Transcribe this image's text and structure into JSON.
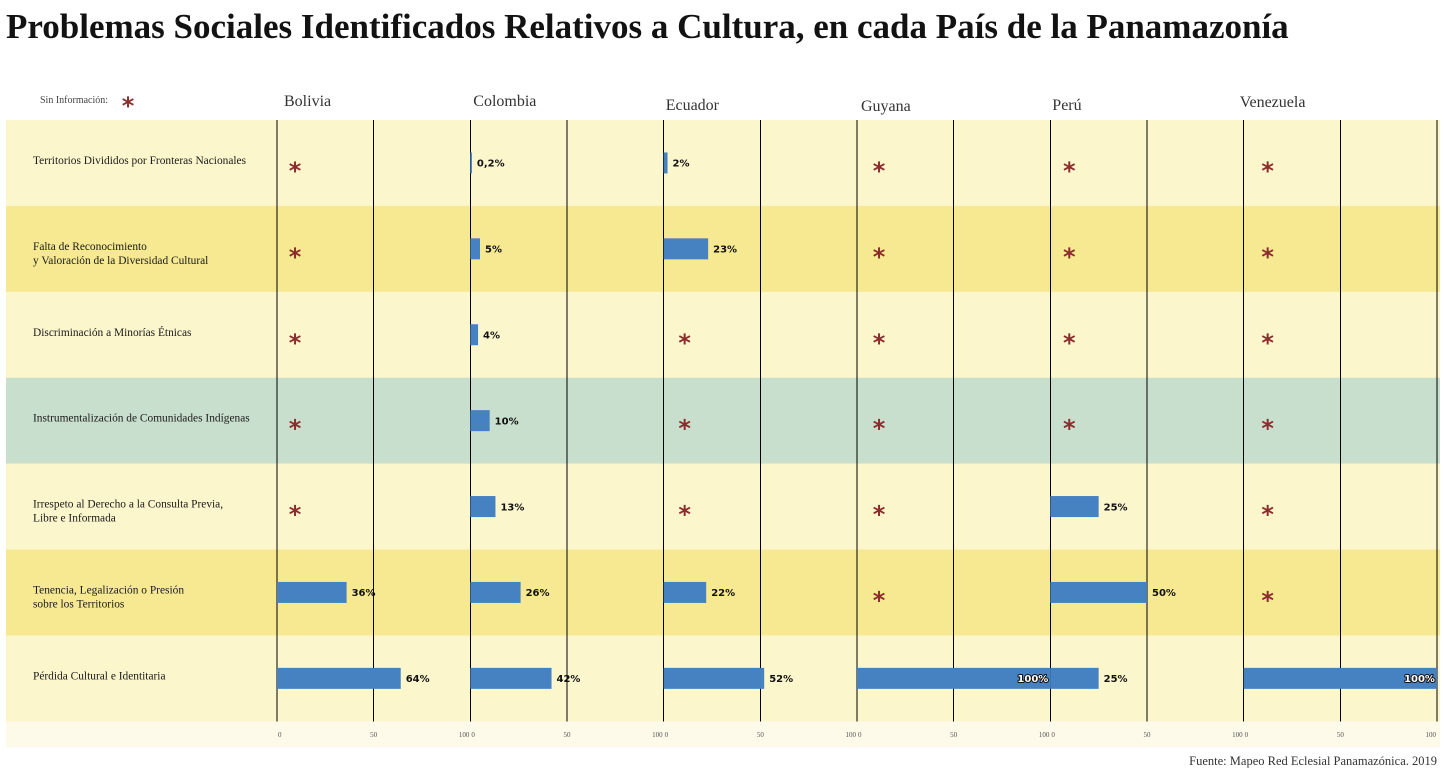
{
  "chart_data": {
    "type": "bar",
    "orientation": "horizontal",
    "title": "Problemas Sociales Identificados Relativos a Cultura, en cada País de la Panamazonía",
    "categories": [
      [
        "Territorios Divididos por Fronteras Nacionales"
      ],
      [
        "Falta de Reconocimiento",
        "y Valoración de la Diversidad Cultural"
      ],
      [
        "Discriminación a Minorías Étnicas"
      ],
      [
        "Instrumentalización de Comunidades Indígenas"
      ],
      [
        "Irrespeto al Derecho a la Consulta Previa,",
        "Libre e Informada"
      ],
      [
        "Tenencia, Legalización o Presión",
        "sobre los Territorios"
      ],
      [
        "Pérdida Cultural e Identitaria"
      ]
    ],
    "series": [
      {
        "name": "Bolivia",
        "values": [
          null,
          null,
          null,
          null,
          null,
          36,
          64
        ],
        "labels": [
          null,
          null,
          null,
          null,
          null,
          "36%",
          "64%"
        ]
      },
      {
        "name": "Colombia",
        "values": [
          0.2,
          5,
          4,
          10,
          13,
          26,
          42
        ],
        "labels": [
          "0,2%",
          "5%",
          "4%",
          "10%",
          "13%",
          "26%",
          "42%"
        ]
      },
      {
        "name": "Ecuador",
        "values": [
          2,
          23,
          null,
          null,
          null,
          22,
          52
        ],
        "labels": [
          "2%",
          "23%",
          null,
          null,
          null,
          "22%",
          "52%"
        ]
      },
      {
        "name": "Guyana",
        "values": [
          null,
          null,
          null,
          null,
          null,
          null,
          100
        ],
        "labels": [
          null,
          null,
          null,
          null,
          null,
          null,
          "100%"
        ]
      },
      {
        "name": "Perú",
        "values": [
          null,
          null,
          null,
          null,
          25,
          50,
          25
        ],
        "labels": [
          null,
          null,
          null,
          null,
          "25%",
          "50%",
          "25%"
        ]
      },
      {
        "name": "Venezuela",
        "values": [
          null,
          null,
          null,
          null,
          null,
          null,
          100
        ],
        "labels": [
          null,
          null,
          null,
          null,
          null,
          null,
          "100%"
        ]
      }
    ],
    "xlim": [
      0,
      100
    ],
    "xticks": [
      "0",
      "50",
      "100"
    ],
    "grid": true,
    "legend": {
      "label": "Sin Información:",
      "marker": "*",
      "placement": "top-left"
    },
    "source": "Fuente: Mapeo Red Eclesial Panamazónica. 2019",
    "colors": {
      "bar": "#4681c1",
      "missing_marker": "#8b2d2d",
      "rows": [
        "#fcf6cd",
        "#f6e991",
        "#fcf6cd",
        "#c9dfcd",
        "#fcf6cd",
        "#f6e991",
        "#fcf6cd"
      ],
      "axis_strip": "#fdfae9",
      "gridline": "#000000"
    }
  }
}
